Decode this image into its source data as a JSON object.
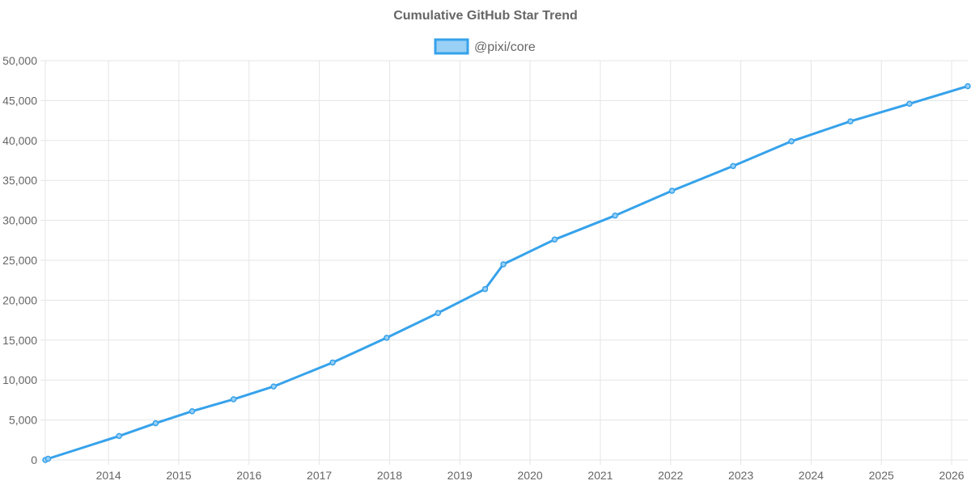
{
  "chart_data": {
    "type": "line",
    "title": "Cumulative GitHub Star Trend",
    "xlabel": "",
    "ylabel": "",
    "legend_position": "top-center",
    "grid": true,
    "colors": {
      "line": "#36a2eb",
      "fill": "#9ad0f5",
      "grid": "#e5e5e5",
      "text": "#666666"
    },
    "xlim": [
      2013.1,
      2026.23
    ],
    "ylim": [
      0,
      50000
    ],
    "x_ticks": [
      {
        "value": 2014,
        "label": "2014"
      },
      {
        "value": 2015,
        "label": "2015"
      },
      {
        "value": 2016,
        "label": "2016"
      },
      {
        "value": 2017,
        "label": "2017"
      },
      {
        "value": 2018,
        "label": "2018"
      },
      {
        "value": 2019,
        "label": "2019"
      },
      {
        "value": 2020,
        "label": "2020"
      },
      {
        "value": 2021,
        "label": "2021"
      },
      {
        "value": 2022,
        "label": "2022"
      },
      {
        "value": 2023,
        "label": "2023"
      },
      {
        "value": 2024,
        "label": "2024"
      },
      {
        "value": 2025,
        "label": "2025"
      },
      {
        "value": 2026,
        "label": "2026"
      }
    ],
    "y_ticks": [
      {
        "value": 0,
        "label": "0"
      },
      {
        "value": 5000,
        "label": "5,000"
      },
      {
        "value": 10000,
        "label": "10,000"
      },
      {
        "value": 15000,
        "label": "15,000"
      },
      {
        "value": 20000,
        "label": "20,000"
      },
      {
        "value": 25000,
        "label": "25,000"
      },
      {
        "value": 30000,
        "label": "30,000"
      },
      {
        "value": 35000,
        "label": "35,000"
      },
      {
        "value": 40000,
        "label": "40,000"
      },
      {
        "value": 45000,
        "label": "45,000"
      },
      {
        "value": 50000,
        "label": "50,000"
      }
    ],
    "series": [
      {
        "name": "@pixi/core",
        "points": [
          {
            "x": 2013.1,
            "y": 0
          },
          {
            "x": 2013.14,
            "y": 150
          },
          {
            "x": 2014.15,
            "y": 3000
          },
          {
            "x": 2014.67,
            "y": 4600
          },
          {
            "x": 2015.19,
            "y": 6100
          },
          {
            "x": 2015.78,
            "y": 7600
          },
          {
            "x": 2016.35,
            "y": 9200
          },
          {
            "x": 2017.19,
            "y": 12200
          },
          {
            "x": 2017.96,
            "y": 15300
          },
          {
            "x": 2018.69,
            "y": 18400
          },
          {
            "x": 2019.36,
            "y": 21400
          },
          {
            "x": 2019.62,
            "y": 24500
          },
          {
            "x": 2020.35,
            "y": 27600
          },
          {
            "x": 2021.21,
            "y": 30600
          },
          {
            "x": 2022.02,
            "y": 33700
          },
          {
            "x": 2022.89,
            "y": 36800
          },
          {
            "x": 2023.72,
            "y": 39900
          },
          {
            "x": 2024.56,
            "y": 42400
          },
          {
            "x": 2025.4,
            "y": 44600
          },
          {
            "x": 2026.23,
            "y": 46800
          }
        ]
      }
    ]
  }
}
